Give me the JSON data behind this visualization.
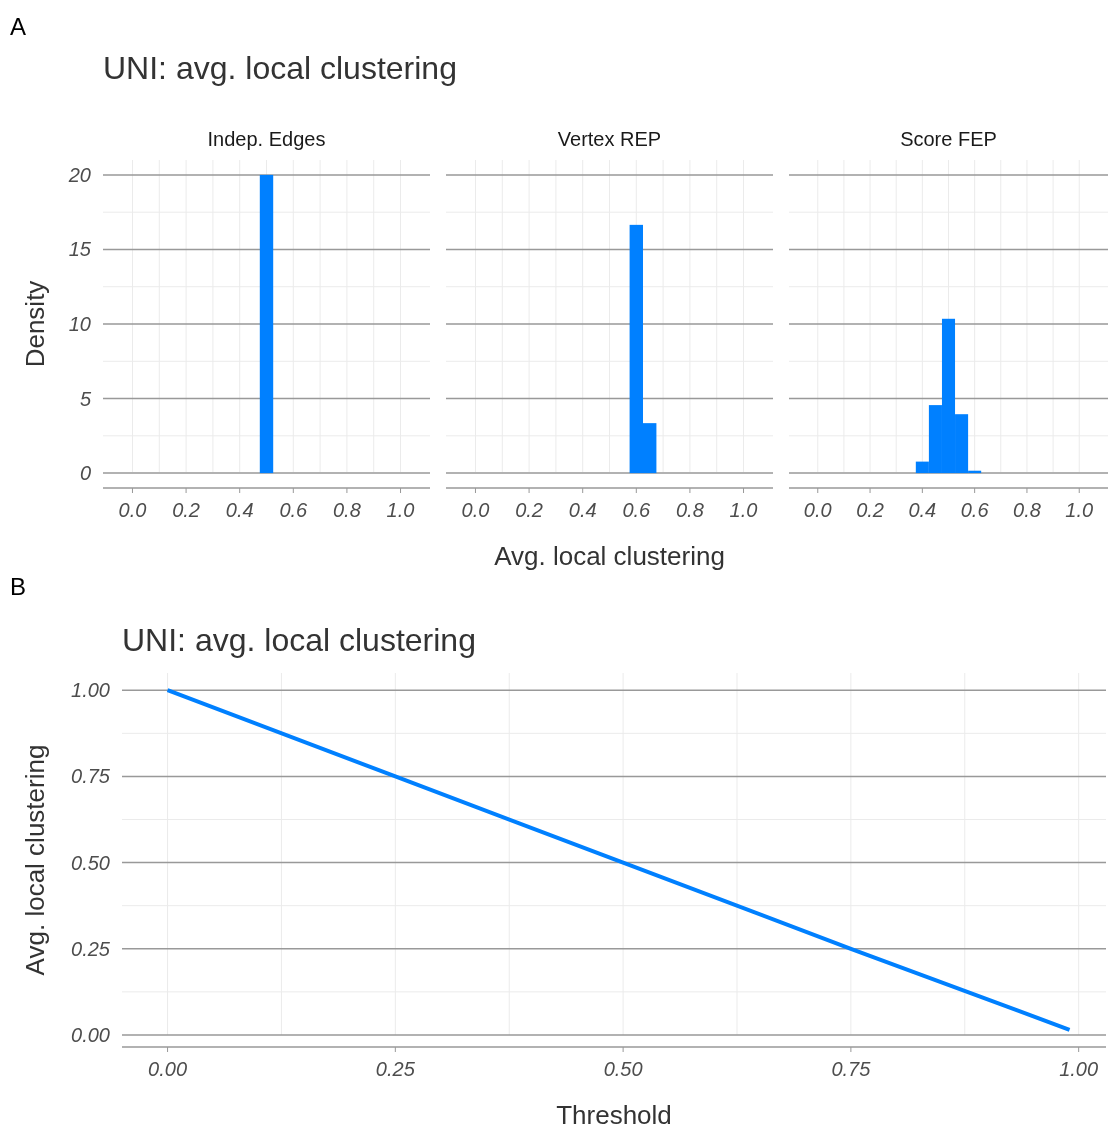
{
  "chart_data": [
    {
      "type": "histogram",
      "title": "Indep. Edges",
      "ylabel": "Density",
      "annotations": [
        "A",
        "UNI: avg. local clustering"
      ],
      "bins": [
        0.475,
        0.525
      ],
      "values": [
        20
      ],
      "color": "#0080ff",
      "xlim": [
        -0.11,
        1.11
      ],
      "ylim": [
        -1,
        21
      ],
      "xticks": [
        {
          "value": 0,
          "label": "0.0"
        },
        0.2,
        0.4,
        0.6,
        0.8,
        {
          "value": 1,
          "label": "1.0"
        }
      ],
      "yticks": [
        0,
        5,
        10,
        15,
        20
      ],
      "grid": true
    },
    {
      "type": "histogram",
      "title": "Vertex REP",
      "xlabel": "Avg. local clustering",
      "bins": [
        0.575,
        0.625,
        0.675
      ],
      "values": [
        16.65,
        3.35
      ],
      "color": "#0080ff",
      "xlim": [
        -0.11,
        1.11
      ],
      "ylim": [
        -1,
        21
      ],
      "xticks": [
        {
          "value": 0,
          "label": "0.0"
        },
        0.2,
        0.4,
        0.6,
        0.8,
        {
          "value": 1,
          "label": "1.0"
        }
      ],
      "yticks": [
        0,
        5,
        10,
        15,
        20
      ],
      "grid": true,
      "tick_labels": "x"
    },
    {
      "type": "histogram",
      "title": "Score FEP",
      "bins": [
        0.375,
        0.425,
        0.475,
        0.525,
        0.575,
        0.625
      ],
      "values": [
        0.77,
        4.56,
        10.35,
        3.95,
        0.16
      ],
      "color": "#0080ff",
      "xlim": [
        -0.11,
        1.11
      ],
      "ylim": [
        -1,
        21
      ],
      "xticks": [
        {
          "value": 0,
          "label": "0.0"
        },
        0.2,
        0.4,
        0.6,
        0.8,
        {
          "value": 1,
          "label": "1.0"
        }
      ],
      "yticks": [
        0,
        5,
        10,
        15,
        20
      ],
      "grid": true,
      "tick_labels": "x"
    },
    {
      "type": "line",
      "title": "UNI: avg. local clustering",
      "annotations": [
        "B"
      ],
      "xlabel": "Threshold",
      "ylabel": "Avg. local clustering",
      "x": [
        0,
        0.25,
        0.5,
        0.75,
        0.99
      ],
      "series": [
        {
          "color": "#0080ff",
          "values": [
            1,
            0.75,
            0.5,
            0.25,
            0.015
          ]
        }
      ],
      "xlim": [
        -0.05,
        1.03
      ],
      "ylim": [
        -0.035,
        1.05
      ],
      "xticks": [
        {
          "value": 0,
          "label": "0.00"
        },
        0.25,
        {
          "value": 0.5,
          "label": "0.50"
        },
        0.75,
        {
          "value": 1,
          "label": "1.00"
        }
      ],
      "yticks": [
        {
          "value": 0,
          "label": "0.00"
        },
        0.25,
        {
          "value": 0.5,
          "label": "0.50"
        },
        0.75,
        {
          "value": 1,
          "label": "1.00"
        }
      ],
      "grid": true,
      "line_style": "solid",
      "marker": "none"
    }
  ]
}
